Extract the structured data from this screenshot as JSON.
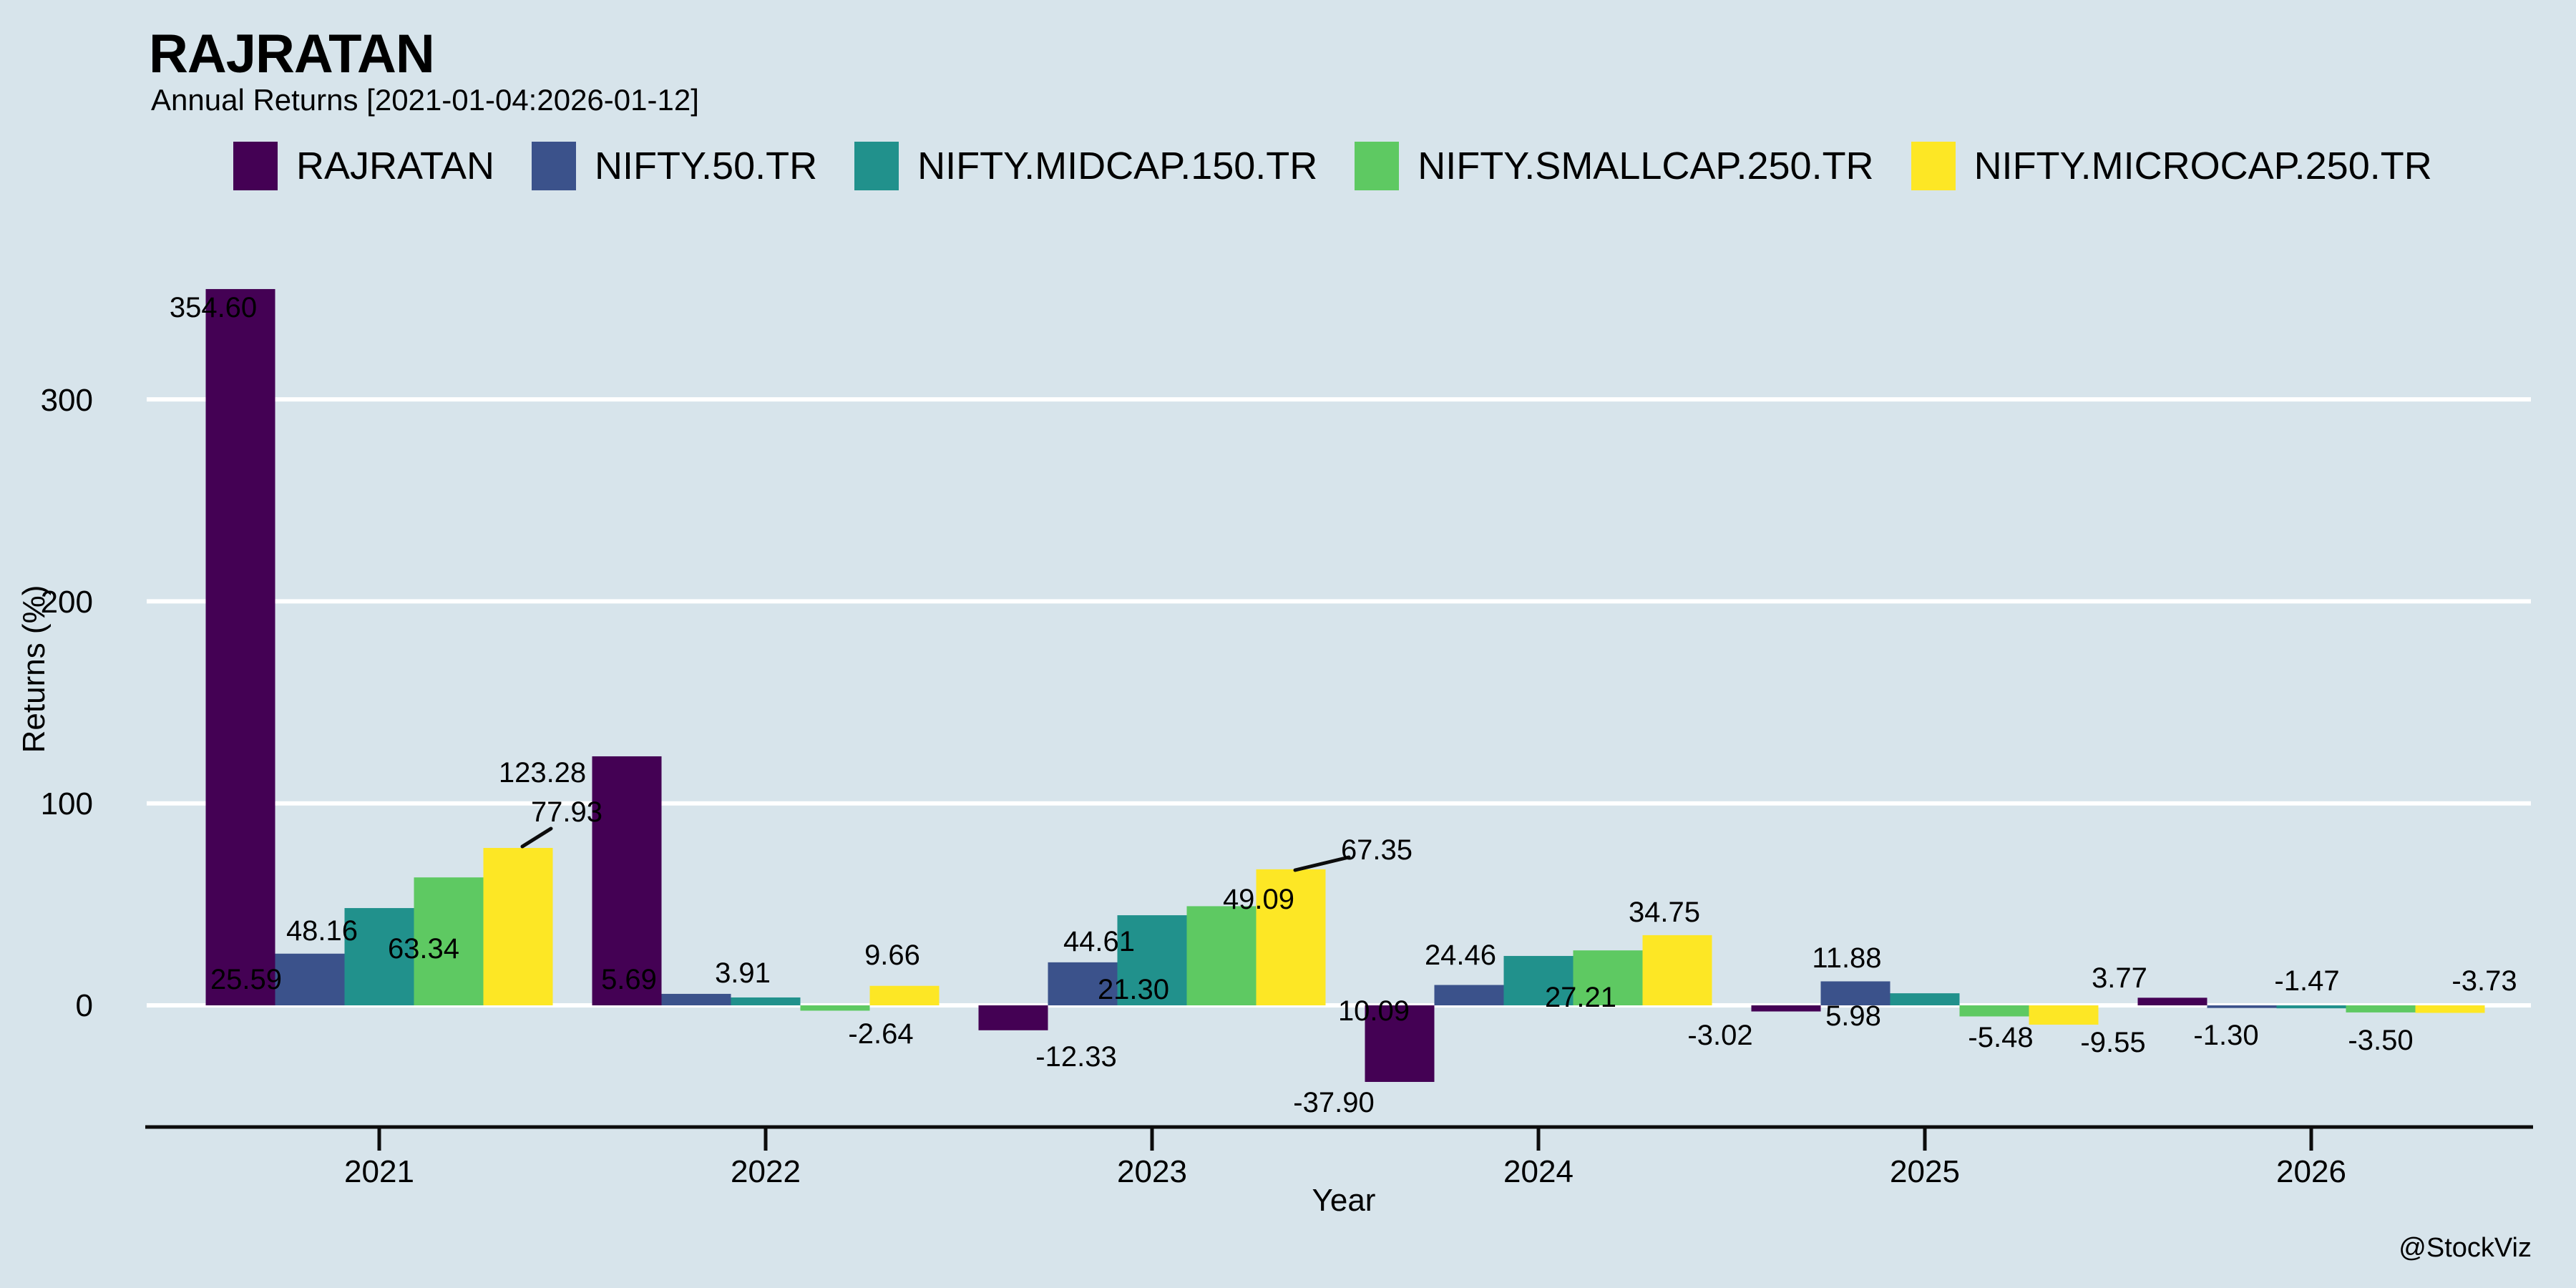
{
  "header": {
    "title": "RAJRATAN",
    "subtitle": "Annual Returns [2021-01-04:2026-01-12]"
  },
  "watermark": "@StockViz",
  "chart_data": {
    "type": "bar",
    "title": "RAJRATAN",
    "subtitle": "Annual Returns [2021-01-04:2026-01-12]",
    "xlabel": "Year",
    "ylabel": "Returns (%)",
    "categories": [
      "2021",
      "2022",
      "2023",
      "2024",
      "2025",
      "2026"
    ],
    "yticks": [
      "0",
      "100",
      "200",
      "300"
    ],
    "ylim": [
      -60,
      370
    ],
    "grid": "horizontal white gridlines",
    "legend_position": "top",
    "background_color": "#d7e4eb",
    "value_label_decimals": 2,
    "series": [
      {
        "name": "RAJRATAN",
        "color": "#440154",
        "values": [
          354.6,
          123.28,
          -12.33,
          -37.9,
          -3.02,
          3.77
        ]
      },
      {
        "name": "NIFTY.50.TR",
        "color": "#3b528b",
        "values": [
          25.59,
          5.69,
          21.3,
          10.09,
          11.88,
          -1.3
        ]
      },
      {
        "name": "NIFTY.MIDCAP.150.TR",
        "color": "#21918c",
        "values": [
          48.16,
          3.91,
          44.61,
          24.46,
          5.98,
          -1.47
        ]
      },
      {
        "name": "NIFTY.SMALLCAP.250.TR",
        "color": "#5ec962",
        "values": [
          63.34,
          -2.64,
          49.09,
          27.21,
          -5.48,
          -3.5
        ]
      },
      {
        "name": "NIFTY.MICROCAP.250.TR",
        "color": "#fde725",
        "values": [
          77.93,
          9.66,
          67.35,
          34.75,
          -9.55,
          -3.73
        ]
      }
    ]
  }
}
